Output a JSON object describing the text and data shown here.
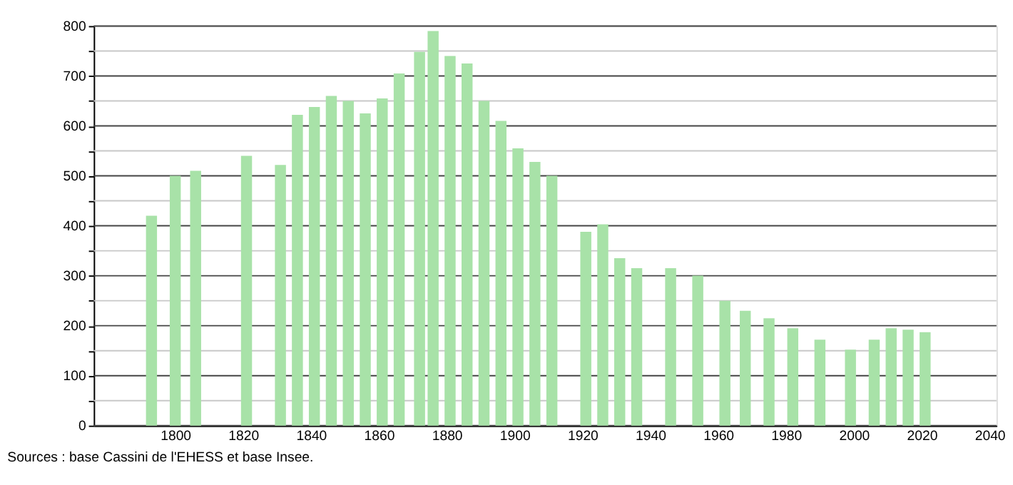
{
  "chart_data": {
    "type": "bar",
    "x": [
      1793,
      1800,
      1806,
      1821,
      1831,
      1836,
      1841,
      1846,
      1851,
      1856,
      1861,
      1866,
      1872,
      1876,
      1881,
      1886,
      1891,
      1896,
      1901,
      1906,
      1911,
      1921,
      1926,
      1931,
      1936,
      1946,
      1954,
      1962,
      1968,
      1975,
      1982,
      1990,
      1999,
      2006,
      2011,
      2016,
      2021
    ],
    "values": [
      420,
      500,
      510,
      540,
      522,
      622,
      638,
      660,
      650,
      625,
      655,
      705,
      748,
      790,
      740,
      725,
      650,
      610,
      555,
      528,
      500,
      388,
      403,
      335,
      315,
      315,
      300,
      250,
      230,
      215,
      195,
      172,
      152,
      172,
      195,
      192,
      187
    ],
    "color": "#a8e2a8",
    "xlim": [
      1778,
      2040
    ],
    "xticks": [
      1800,
      1820,
      1840,
      1860,
      1880,
      1900,
      1920,
      1940,
      1960,
      1980,
      2000,
      2020,
      2040
    ],
    "ylim": [
      0,
      800
    ],
    "yticks": [
      0,
      {
        "value": 50,
        "label": null
      },
      100,
      {
        "value": 150,
        "label": null
      },
      200,
      {
        "value": 250,
        "label": null
      },
      300,
      {
        "value": 350,
        "label": null
      },
      400,
      {
        "value": 450,
        "label": null
      },
      500,
      {
        "value": 550,
        "label": null
      },
      600,
      {
        "value": 650,
        "label": null
      },
      700,
      {
        "value": 750,
        "label": null
      },
      800
    ],
    "grid": "y",
    "annotations": [
      "Sources : base Cassini de l'EHESS et base Insee."
    ]
  }
}
